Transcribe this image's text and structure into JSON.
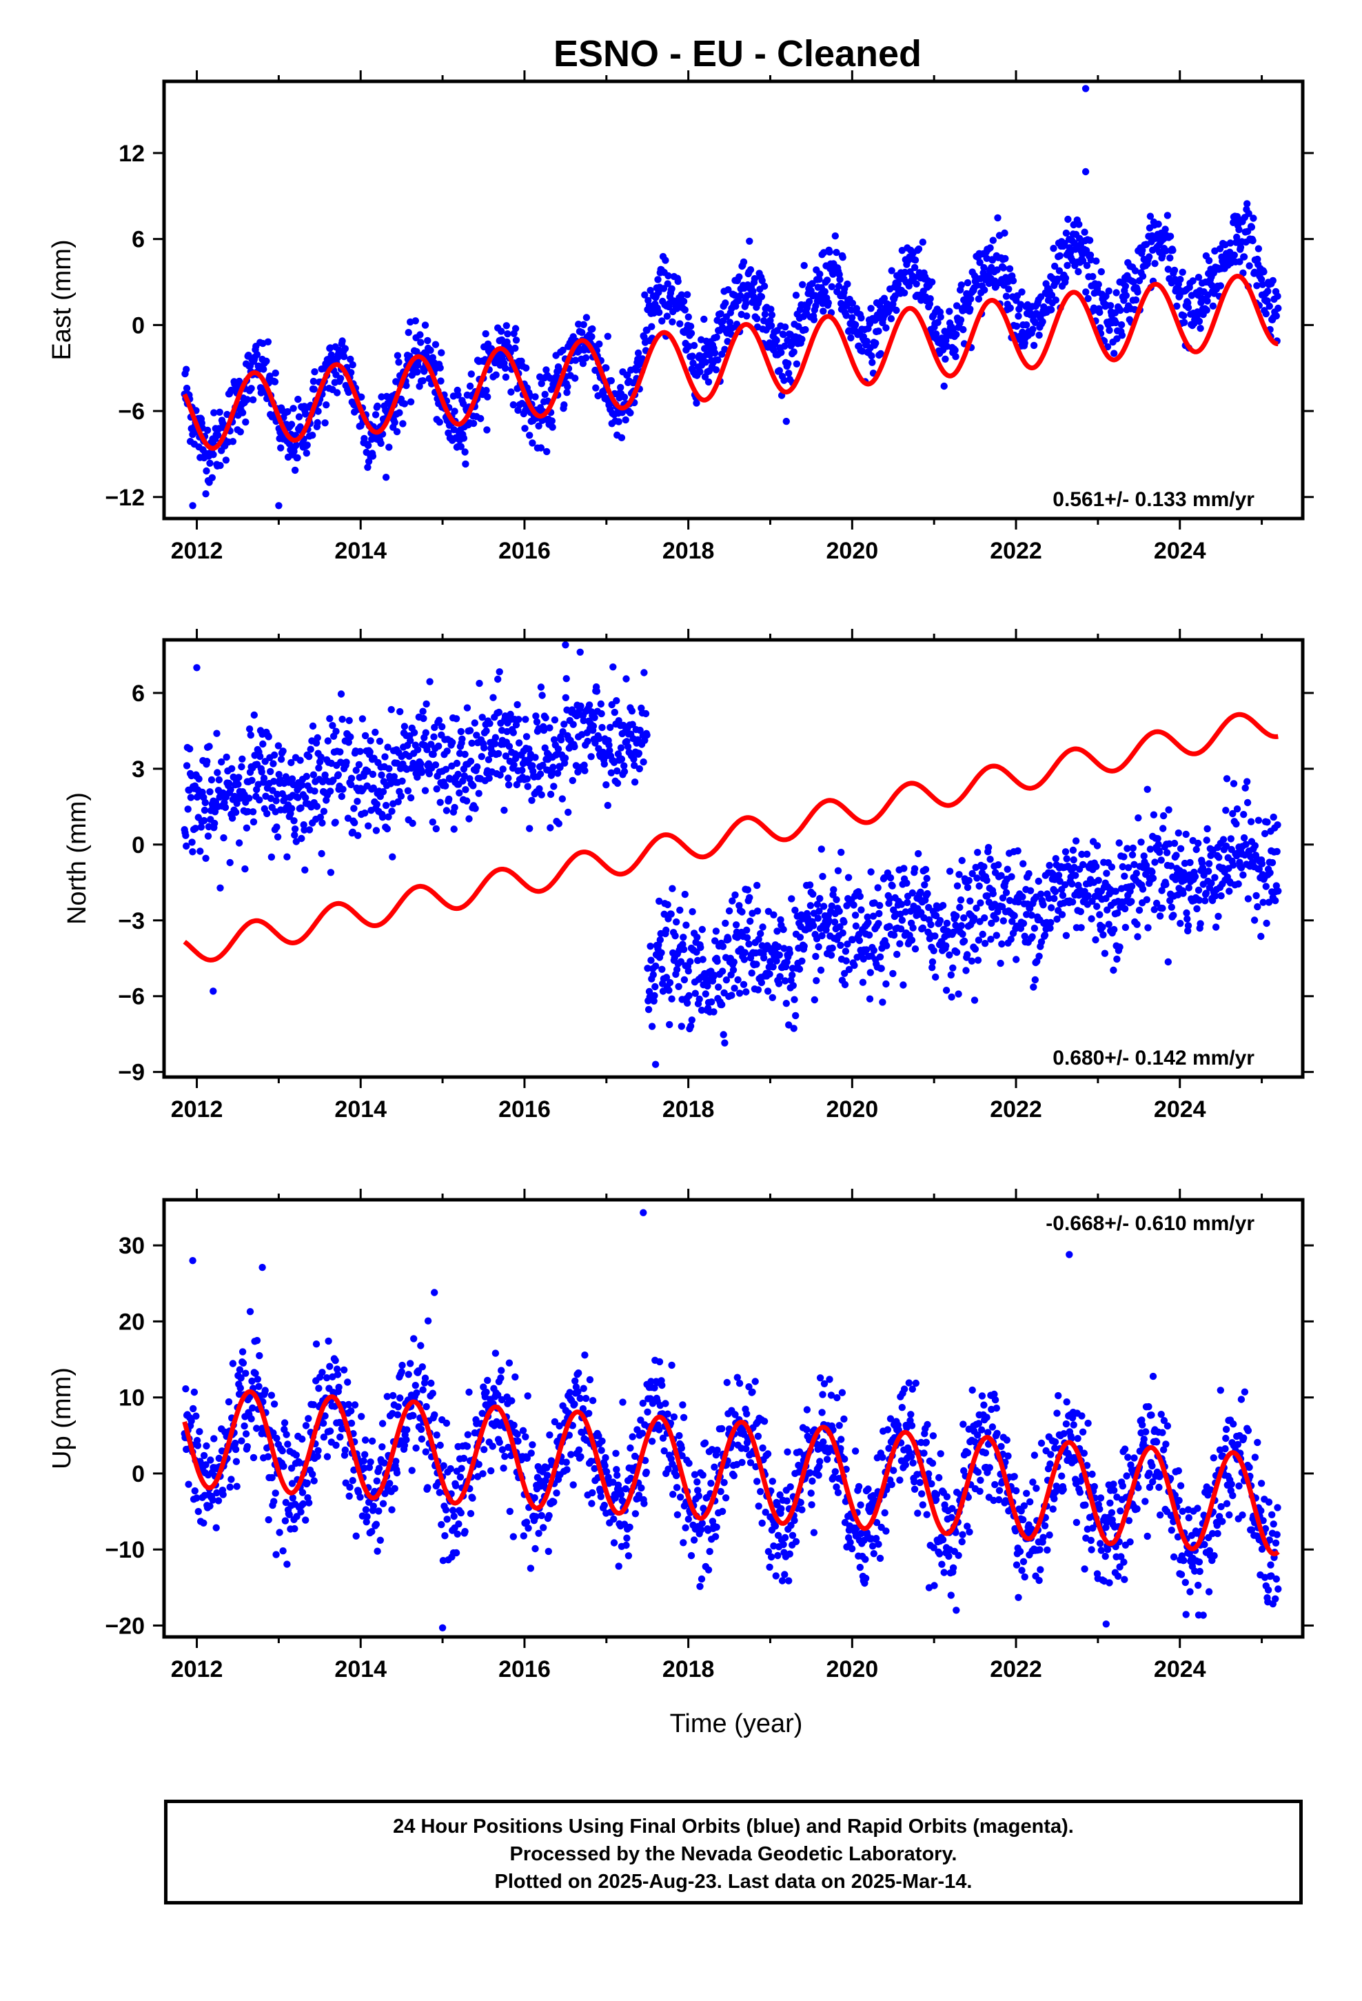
{
  "title": "ESNO  - EU - Cleaned",
  "x_axis_label": "Time (year)",
  "caption": {
    "line1": "24 Hour Positions Using Final Orbits (blue) and Rapid Orbits (magenta).",
    "line2": "Processed by the Nevada Geodetic Laboratory.",
    "line3": "Plotted on 2025-Aug-23. Last data on 2025-Mar-14."
  },
  "colors": {
    "points": "#0000ff",
    "fit": "#ff0000",
    "frame": "#000000"
  },
  "chart_data": [
    {
      "type": "scatter",
      "ylabel": "East (mm)",
      "rate_label": "0.561+/- 0.133 mm/yr",
      "rate_label_position": "bottom-right",
      "xlim": [
        2011.6,
        2025.5
      ],
      "ylim": [
        -13.5,
        17.0
      ],
      "x_ticks": [
        2012,
        2014,
        2016,
        2018,
        2020,
        2022,
        2024
      ],
      "y_ticks": [
        -12,
        -6,
        0,
        6,
        12
      ],
      "data_start": 2011.85,
      "data_end": 2025.2,
      "step_year": 2017.45,
      "trend_start": -6.3,
      "trend_rate": 0.561,
      "offset_at_step": 2.8,
      "annual_amplitude": 2.5,
      "annual_phase_year": 2011.45,
      "point_scatter": 1.2,
      "outliers": [
        [
          2022.85,
          16.5
        ],
        [
          2022.85,
          10.7
        ],
        [
          2013.0,
          -12.6
        ],
        [
          2011.95,
          -12.6
        ]
      ]
    },
    {
      "type": "scatter",
      "ylabel": "North (mm)",
      "rate_label": "0.680+/- 0.142 mm/yr",
      "rate_label_position": "bottom-right",
      "xlim": [
        2011.6,
        2025.5
      ],
      "ylim": [
        -9.2,
        8.1
      ],
      "x_ticks": [
        2012,
        2014,
        2016,
        2018,
        2020,
        2022,
        2024
      ],
      "y_ticks": [
        -9,
        -6,
        -3,
        0,
        3,
        6
      ],
      "data_start": 2011.85,
      "data_end": 2025.2,
      "step_year": 2017.5,
      "points_before_step": {
        "start": 1.8,
        "end": 4.3
      },
      "points_after_step": {
        "start": -5.1,
        "end": -0.4
      },
      "fit_start": -4.2,
      "fit_rate": 0.68,
      "annual_amplitude": 0.6,
      "annual_phase_year": 2011.45,
      "point_scatter": 1.1,
      "outliers": [
        [
          2012.2,
          -5.8
        ],
        [
          2017.6,
          -8.7
        ],
        [
          2012.0,
          7.0
        ],
        [
          2016.5,
          7.9
        ]
      ]
    },
    {
      "type": "scatter",
      "ylabel": "Up (mm)",
      "rate_label": "-0.668+/- 0.610 mm/yr",
      "rate_label_position": "top-right",
      "xlim": [
        2011.6,
        2025.5
      ],
      "ylim": [
        -21.5,
        36.0
      ],
      "x_ticks": [
        2012,
        2014,
        2016,
        2018,
        2020,
        2022,
        2024
      ],
      "y_ticks": [
        -20,
        -10,
        0,
        10,
        20,
        30
      ],
      "data_start": 2011.85,
      "data_end": 2025.2,
      "trend_start": 4.8,
      "trend_rate": -0.668,
      "annual_amplitude": 6.5,
      "annual_phase_year": 2012.4,
      "point_scatter": 4.0,
      "outliers": [
        [
          2017.45,
          34.3
        ],
        [
          2022.65,
          28.8
        ],
        [
          2011.95,
          28.0
        ],
        [
          2012.8,
          27.1
        ],
        [
          2014.9,
          23.8
        ],
        [
          2015.0,
          -20.3
        ],
        [
          2023.1,
          -19.8
        ]
      ]
    }
  ]
}
